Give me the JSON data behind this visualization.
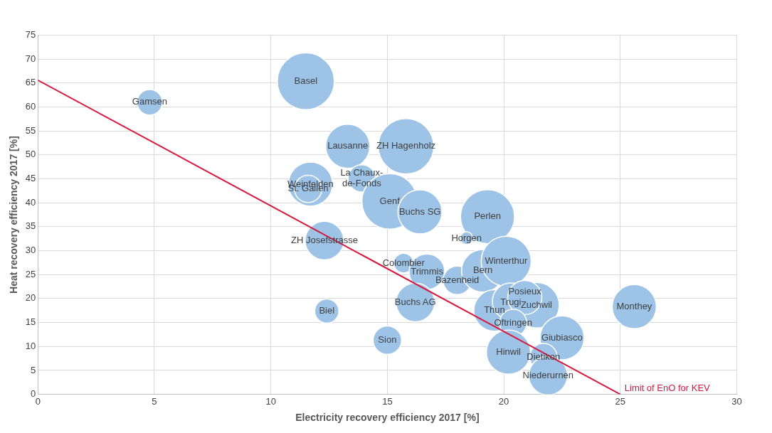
{
  "chart_data": {
    "type": "bubble",
    "xlabel": "Electricity recovery efficiency 2017 [%]",
    "ylabel": "Heat recovery efficiency 2017 [%]",
    "xlim": [
      0,
      30
    ],
    "xticks": [
      0,
      5,
      10,
      15,
      20,
      25,
      30
    ],
    "ylim": [
      0,
      75
    ],
    "yticks": [
      0,
      5,
      10,
      15,
      20,
      25,
      30,
      35,
      40,
      45,
      50,
      55,
      60,
      65,
      70,
      75
    ],
    "grid": true,
    "legend": false,
    "series": [
      {
        "color": "#9dc3e6",
        "x": [
          4.8,
          11.5,
          13.3,
          15.8,
          13.9,
          11.7,
          11.6,
          15.1,
          16.4,
          19.3,
          18.4,
          12.3,
          15.7,
          16.7,
          18.0,
          19.1,
          20.1,
          16.2,
          12.4,
          15.0,
          19.6,
          21.4,
          20.3,
          20.9,
          20.4,
          22.5,
          20.2,
          21.7,
          21.9,
          25.6
        ],
        "values": [
          61.0,
          65.4,
          51.8,
          51.8,
          45.1,
          43.9,
          42.9,
          40.3,
          38.1,
          37.1,
          32.6,
          32.1,
          27.4,
          25.6,
          23.8,
          25.8,
          27.8,
          19.2,
          17.4,
          11.3,
          17.5,
          18.6,
          19.4,
          20.2,
          14.9,
          11.8,
          8.8,
          7.8,
          3.9,
          18.3
        ],
        "sizes": [
          0.2,
          1,
          0.6,
          0.95,
          0.23,
          0.6,
          0.23,
          0.95,
          0.6,
          0.9,
          0.05,
          0.46,
          0.12,
          0.39,
          0.25,
          0.56,
          0.77,
          0.46,
          0.18,
          0.25,
          0.53,
          0.64,
          0.42,
          0.36,
          0.23,
          0.6,
          0.6,
          0.23,
          0.46,
          0.6
        ]
      },
      {
        "type": "line",
        "name": "Limit of EnO for KEV",
        "color": "#d7193f",
        "x": [
          0,
          25
        ],
        "values": [
          65.6,
          0
        ]
      }
    ],
    "annotations": [
      {
        "text": "Gamsen",
        "x": 4.8,
        "y": 61.0
      },
      {
        "text": "Basel",
        "x": 11.5,
        "y": 65.4
      },
      {
        "text": "Lausanne",
        "x": 13.3,
        "y": 51.8
      },
      {
        "text": "ZH Hagenholz",
        "x": 15.8,
        "y": 51.8
      },
      {
        "text": "La Chaux-\nde-Fonds",
        "x": 13.9,
        "y": 45.1
      },
      {
        "text": "Weinfelden",
        "x": 11.7,
        "y": 43.9
      },
      {
        "text": "St. Gallen",
        "x": 11.6,
        "y": 42.9
      },
      {
        "text": "Genf",
        "x": 15.1,
        "y": 40.3
      },
      {
        "text": "Buchs SG",
        "x": 16.4,
        "y": 38.1
      },
      {
        "text": "Perlen",
        "x": 19.3,
        "y": 37.1
      },
      {
        "text": "Horgen",
        "x": 18.4,
        "y": 32.6
      },
      {
        "text": "ZH Josefstrasse",
        "x": 12.3,
        "y": 32.1
      },
      {
        "text": "Colombier",
        "x": 15.7,
        "y": 27.4
      },
      {
        "text": "Trimmis",
        "x": 16.7,
        "y": 25.6
      },
      {
        "text": "Bazenheid",
        "x": 18.0,
        "y": 23.8
      },
      {
        "text": "Bern",
        "x": 19.1,
        "y": 25.8
      },
      {
        "text": "Winterthur",
        "x": 20.1,
        "y": 27.8
      },
      {
        "text": "Buchs AG",
        "x": 16.2,
        "y": 19.2
      },
      {
        "text": "Biel",
        "x": 12.4,
        "y": 17.4
      },
      {
        "text": "Sion",
        "x": 15.0,
        "y": 11.3
      },
      {
        "text": "Thun",
        "x": 19.6,
        "y": 17.5
      },
      {
        "text": "Zuchwil",
        "x": 21.4,
        "y": 18.6
      },
      {
        "text": "Trugi",
        "x": 20.3,
        "y": 19.2
      },
      {
        "text": "Posieux",
        "x": 20.9,
        "y": 21.4
      },
      {
        "text": "Oftringen",
        "x": 20.4,
        "y": 14.9
      },
      {
        "text": "Giubiasco",
        "x": 22.5,
        "y": 11.8
      },
      {
        "text": "Hinwil",
        "x": 20.2,
        "y": 8.8
      },
      {
        "text": "Dietikon",
        "x": 21.7,
        "y": 7.8
      },
      {
        "text": "Niederurnen",
        "x": 21.9,
        "y": 3.9
      },
      {
        "text": "Monthey",
        "x": 25.6,
        "y": 18.3
      }
    ]
  }
}
